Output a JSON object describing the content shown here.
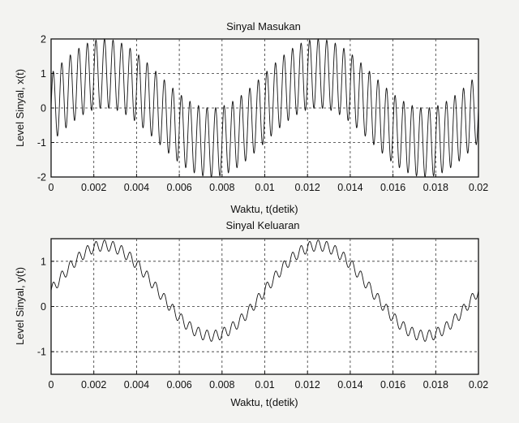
{
  "chart_data": [
    {
      "type": "line",
      "title": "Sinyal Masukan",
      "xlabel": "Waktu, t(detik)",
      "ylabel": "Level Sinyal, x(t)",
      "xlim": [
        0,
        0.02
      ],
      "ylim": [
        -2,
        2
      ],
      "xticks": [
        0,
        0.002,
        0.004,
        0.006,
        0.008,
        0.01,
        0.012,
        0.014,
        0.016,
        0.018,
        0.02
      ],
      "xtick_labels": [
        "0",
        "0.002",
        "0.004",
        "0.006",
        "0.008",
        "0.01",
        "0.012",
        "0.014",
        "0.016",
        "0.018",
        "0.02"
      ],
      "yticks": [
        -2,
        -1,
        0,
        1,
        2
      ],
      "ytick_labels": [
        "-2",
        "-1",
        "0",
        "1",
        "2"
      ],
      "grid": true,
      "series": [
        {
          "components": [
            {
              "amplitude": 1.0,
              "frequency_hz": 100,
              "phase": 0
            },
            {
              "amplitude": 1.0,
              "frequency_hz": 2500,
              "phase": 0
            }
          ]
        }
      ]
    },
    {
      "type": "line",
      "title": "Sinyal Keluaran",
      "xlabel": "Waktu, t(detik)",
      "ylabel": "Level Sinyal, y(t)",
      "xlim": [
        0,
        0.02
      ],
      "ylim": [
        -1.5,
        1.5
      ],
      "xticks": [
        0,
        0.002,
        0.004,
        0.006,
        0.008,
        0.01,
        0.012,
        0.014,
        0.016,
        0.018,
        0.02
      ],
      "xtick_labels": [
        "0",
        "0.002",
        "0.004",
        "0.006",
        "0.008",
        "0.01",
        "0.012",
        "0.014",
        "0.016",
        "0.018",
        "0.02"
      ],
      "yticks": [
        -1,
        0,
        1
      ],
      "ytick_labels": [
        "-1",
        "0",
        "1"
      ],
      "grid": true,
      "series": [
        {
          "components": [
            {
              "amplitude": 0.35,
              "frequency_hz": 0,
              "phase": 0
            },
            {
              "amplitude": 1.0,
              "frequency_hz": 100,
              "phase": 0
            },
            {
              "amplitude": 0.12,
              "frequency_hz": 2500,
              "phase": 0
            }
          ]
        }
      ]
    }
  ]
}
